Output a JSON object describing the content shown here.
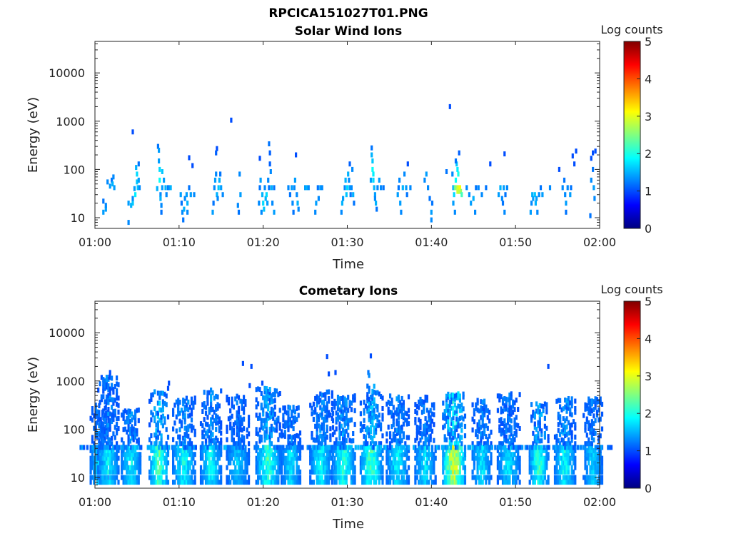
{
  "figure": {
    "filename": "RPCICA151027T01.PNG"
  },
  "chart_data": [
    {
      "type": "heatmap",
      "title": "Solar Wind Ions",
      "xlabel": "Time",
      "ylabel": "Energy (eV)",
      "yscale": "log",
      "ylim": [
        6,
        45000
      ],
      "x_range_minutes": [
        0,
        60
      ],
      "xticks": [
        "01:00",
        "01:10",
        "01:20",
        "01:30",
        "01:40",
        "01:50",
        "02:00"
      ],
      "yticks": [
        "10",
        "100",
        "1000",
        "10000"
      ],
      "colorbar": {
        "label": "Log counts",
        "range": [
          0,
          5
        ],
        "ticks": [
          "0",
          "1",
          "2",
          "3",
          "4",
          "5"
        ]
      },
      "cells": [
        [
          1.0,
          13,
          1.4
        ],
        [
          1.0,
          22,
          1.2
        ],
        [
          1.3,
          15,
          1.4
        ],
        [
          1.3,
          18,
          1.3
        ],
        [
          1.5,
          55,
          1.3
        ],
        [
          1.8,
          45,
          1.4
        ],
        [
          2.0,
          60,
          1.2
        ],
        [
          2.1,
          50,
          1.5
        ],
        [
          2.3,
          42,
          1.4
        ],
        [
          2.2,
          70,
          1.3
        ],
        [
          4.0,
          8,
          1.3
        ],
        [
          4.0,
          20,
          1.4
        ],
        [
          4.3,
          18,
          1.5
        ],
        [
          4.5,
          20,
          1.6
        ],
        [
          4.5,
          25,
          1.3
        ],
        [
          4.7,
          40,
          1.4
        ],
        [
          4.8,
          30,
          1.8
        ],
        [
          4.9,
          110,
          1.5
        ],
        [
          5.0,
          80,
          1.7
        ],
        [
          5.0,
          55,
          1.6
        ],
        [
          5.1,
          42,
          1.6
        ],
        [
          5.2,
          60,
          1.4
        ],
        [
          5.2,
          130,
          1.2
        ],
        [
          5.3,
          42,
          1.3
        ],
        [
          4.5,
          600,
          1.0
        ],
        [
          7.4,
          40,
          1.5
        ],
        [
          7.5,
          300,
          1.2
        ],
        [
          7.6,
          250,
          1.4
        ],
        [
          7.6,
          150,
          1.4
        ],
        [
          7.7,
          100,
          1.7
        ],
        [
          7.7,
          60,
          1.9
        ],
        [
          7.8,
          30,
          1.3
        ],
        [
          7.8,
          25,
          1.5
        ],
        [
          7.9,
          18,
          1.3
        ],
        [
          7.9,
          13,
          1.2
        ],
        [
          8.0,
          42,
          1.4
        ],
        [
          8.0,
          90,
          1.6
        ],
        [
          8.2,
          60,
          1.4
        ],
        [
          8.4,
          42,
          1.5
        ],
        [
          8.5,
          30,
          1.3
        ],
        [
          8.7,
          42,
          1.2
        ],
        [
          8.8,
          42,
          1.3
        ],
        [
          9.0,
          42,
          1.5
        ],
        [
          10.2,
          30,
          1.4
        ],
        [
          10.3,
          20,
          1.2
        ],
        [
          10.4,
          13,
          1.3
        ],
        [
          10.5,
          9,
          1.2
        ],
        [
          10.6,
          15,
          1.5
        ],
        [
          10.7,
          25,
          1.3
        ],
        [
          10.9,
          30,
          1.4
        ],
        [
          11.0,
          20,
          1.5
        ],
        [
          11.0,
          13,
          1.3
        ],
        [
          11.2,
          42,
          1.2
        ],
        [
          11.4,
          30,
          1.4
        ],
        [
          11.2,
          175,
          1.0
        ],
        [
          11.6,
          120,
          1.0
        ],
        [
          11.8,
          30,
          1.3
        ],
        [
          14.0,
          13,
          1.4
        ],
        [
          14.1,
          20,
          1.2
        ],
        [
          14.2,
          42,
          1.3
        ],
        [
          14.3,
          60,
          1.4
        ],
        [
          14.4,
          80,
          1.3
        ],
        [
          14.5,
          30,
          1.5
        ],
        [
          14.6,
          25,
          1.3
        ],
        [
          14.7,
          42,
          1.6
        ],
        [
          14.8,
          60,
          1.5
        ],
        [
          14.9,
          80,
          1.2
        ],
        [
          15.0,
          42,
          1.4
        ],
        [
          15.2,
          30,
          1.3
        ],
        [
          14.5,
          270,
          1.0
        ],
        [
          14.4,
          220,
          1.1
        ],
        [
          16.2,
          1050,
          1.0
        ],
        [
          17.0,
          18,
          1.3
        ],
        [
          17.1,
          13,
          1.2
        ],
        [
          17.2,
          80,
          1.3
        ],
        [
          17.3,
          30,
          1.4
        ],
        [
          19.5,
          20,
          1.3
        ],
        [
          19.6,
          42,
          1.2
        ],
        [
          19.7,
          60,
          1.4
        ],
        [
          19.8,
          13,
          1.3
        ],
        [
          19.9,
          30,
          1.5
        ],
        [
          20.0,
          20,
          1.7
        ],
        [
          20.1,
          15,
          1.6
        ],
        [
          20.2,
          42,
          1.3
        ],
        [
          20.3,
          25,
          1.5
        ],
        [
          20.4,
          30,
          1.7
        ],
        [
          20.5,
          20,
          1.4
        ],
        [
          20.6,
          60,
          1.3
        ],
        [
          20.7,
          42,
          1.2
        ],
        [
          20.8,
          130,
          1.1
        ],
        [
          20.7,
          340,
          1.2
        ],
        [
          20.8,
          220,
          1.1
        ],
        [
          20.9,
          90,
          1.3
        ],
        [
          21.0,
          42,
          1.5
        ],
        [
          21.1,
          20,
          1.3
        ],
        [
          21.3,
          13,
          1.4
        ],
        [
          21.3,
          42,
          1.2
        ],
        [
          19.6,
          170,
          1.0
        ],
        [
          23.0,
          42,
          1.3
        ],
        [
          23.2,
          30,
          1.2
        ],
        [
          23.4,
          42,
          1.4
        ],
        [
          23.5,
          20,
          1.3
        ],
        [
          23.6,
          13,
          1.2
        ],
        [
          23.7,
          42,
          1.3
        ],
        [
          23.8,
          60,
          1.4
        ],
        [
          24.0,
          30,
          1.3
        ],
        [
          24.1,
          20,
          1.5
        ],
        [
          24.2,
          15,
          1.3
        ],
        [
          23.9,
          200,
          1.0
        ],
        [
          25.0,
          42,
          1.4
        ],
        [
          25.2,
          42,
          1.5
        ],
        [
          25.4,
          42,
          1.3
        ],
        [
          26.2,
          13,
          1.3
        ],
        [
          26.3,
          20,
          1.4
        ],
        [
          26.5,
          42,
          1.2
        ],
        [
          26.6,
          25,
          1.3
        ],
        [
          26.8,
          42,
          1.4
        ],
        [
          27.0,
          42,
          1.3
        ],
        [
          29.3,
          13,
          1.3
        ],
        [
          29.4,
          20,
          1.5
        ],
        [
          29.5,
          25,
          1.4
        ],
        [
          29.7,
          42,
          1.3
        ],
        [
          29.8,
          60,
          1.5
        ],
        [
          29.9,
          30,
          1.6
        ],
        [
          30.0,
          42,
          1.7
        ],
        [
          30.1,
          80,
          1.5
        ],
        [
          30.2,
          60,
          1.3
        ],
        [
          30.3,
          42,
          1.4
        ],
        [
          30.4,
          30,
          1.2
        ],
        [
          30.5,
          42,
          1.3
        ],
        [
          30.6,
          100,
          1.3
        ],
        [
          30.7,
          30,
          1.5
        ],
        [
          30.8,
          20,
          1.2
        ],
        [
          30.3,
          130,
          1.1
        ],
        [
          32.8,
          60,
          1.4
        ],
        [
          32.9,
          280,
          1.2
        ],
        [
          33.0,
          150,
          1.6
        ],
        [
          33.0,
          100,
          1.9
        ],
        [
          33.1,
          80,
          1.8
        ],
        [
          33.1,
          60,
          1.7
        ],
        [
          33.2,
          42,
          1.5
        ],
        [
          33.3,
          30,
          1.4
        ],
        [
          33.3,
          25,
          1.3
        ],
        [
          33.4,
          20,
          1.5
        ],
        [
          33.5,
          15,
          1.2
        ],
        [
          33.6,
          42,
          1.3
        ],
        [
          33.8,
          60,
          1.4
        ],
        [
          34.0,
          42,
          1.3
        ],
        [
          34.3,
          42,
          1.2
        ],
        [
          32.9,
          200,
          1.5
        ],
        [
          36.0,
          30,
          1.4
        ],
        [
          36.1,
          42,
          1.2
        ],
        [
          36.2,
          60,
          1.3
        ],
        [
          36.3,
          20,
          1.4
        ],
        [
          36.4,
          13,
          1.3
        ],
        [
          36.6,
          42,
          1.5
        ],
        [
          36.8,
          80,
          1.3
        ],
        [
          37.0,
          42,
          1.4
        ],
        [
          37.1,
          30,
          1.2
        ],
        [
          37.2,
          130,
          1.0
        ],
        [
          37.5,
          42,
          1.3
        ],
        [
          39.2,
          60,
          1.3
        ],
        [
          39.4,
          80,
          1.4
        ],
        [
          39.6,
          42,
          1.3
        ],
        [
          39.8,
          25,
          1.2
        ],
        [
          40.0,
          13,
          1.4
        ],
        [
          40.0,
          9,
          1.3
        ],
        [
          40.1,
          20,
          1.2
        ],
        [
          42.2,
          2000,
          1.0
        ],
        [
          41.8,
          90,
          1.2
        ],
        [
          42.5,
          80,
          1.3
        ],
        [
          42.6,
          42,
          1.5
        ],
        [
          42.7,
          30,
          1.7
        ],
        [
          42.8,
          42,
          2.4
        ],
        [
          42.9,
          60,
          1.9
        ],
        [
          43.0,
          42,
          2.7
        ],
        [
          43.1,
          35,
          2.9
        ],
        [
          43.2,
          42,
          3.0
        ],
        [
          43.3,
          35,
          2.8
        ],
        [
          43.4,
          42,
          3.1
        ],
        [
          43.5,
          35,
          2.6
        ],
        [
          43.6,
          30,
          2.2
        ],
        [
          43.2,
          80,
          2.0
        ],
        [
          43.1,
          100,
          1.8
        ],
        [
          43.0,
          130,
          1.6
        ],
        [
          42.6,
          20,
          1.4
        ],
        [
          42.8,
          13,
          1.3
        ],
        [
          42.9,
          150,
          1.2
        ],
        [
          43.3,
          220,
          1.1
        ],
        [
          44.2,
          42,
          1.3
        ],
        [
          44.5,
          30,
          1.3
        ],
        [
          44.7,
          20,
          1.4
        ],
        [
          45.0,
          25,
          1.5
        ],
        [
          45.2,
          13,
          1.3
        ],
        [
          45.3,
          42,
          1.2
        ],
        [
          45.6,
          42,
          1.3
        ],
        [
          46.0,
          30,
          1.3
        ],
        [
          46.5,
          42,
          1.2
        ],
        [
          47.0,
          130,
          1.0
        ],
        [
          48.0,
          30,
          1.4
        ],
        [
          48.2,
          42,
          1.5
        ],
        [
          48.4,
          25,
          1.3
        ],
        [
          48.5,
          20,
          1.2
        ],
        [
          48.6,
          42,
          1.4
        ],
        [
          48.7,
          13,
          1.3
        ],
        [
          48.8,
          30,
          1.2
        ],
        [
          49.0,
          42,
          1.3
        ],
        [
          48.7,
          210,
          1.0
        ],
        [
          51.8,
          13,
          1.4
        ],
        [
          51.9,
          20,
          1.3
        ],
        [
          52.0,
          30,
          1.5
        ],
        [
          52.1,
          25,
          1.4
        ],
        [
          52.3,
          30,
          1.6
        ],
        [
          52.4,
          20,
          1.5
        ],
        [
          52.5,
          25,
          1.4
        ],
        [
          52.6,
          13,
          1.3
        ],
        [
          52.8,
          30,
          1.3
        ],
        [
          53.0,
          42,
          1.2
        ],
        [
          53.2,
          30,
          1.4
        ],
        [
          54.1,
          42,
          1.3
        ],
        [
          55.6,
          42,
          1.3
        ],
        [
          55.8,
          60,
          1.2
        ],
        [
          55.9,
          30,
          1.3
        ],
        [
          56.0,
          20,
          1.4
        ],
        [
          56.0,
          13,
          1.2
        ],
        [
          56.2,
          42,
          1.3
        ],
        [
          56.5,
          30,
          1.4
        ],
        [
          56.6,
          42,
          1.2
        ],
        [
          55.2,
          100,
          1.0
        ],
        [
          57.0,
          130,
          1.0
        ],
        [
          57.2,
          240,
          1.0
        ],
        [
          56.8,
          190,
          1.0
        ],
        [
          59.0,
          60,
          1.3
        ],
        [
          59.2,
          100,
          1.2
        ],
        [
          59.3,
          42,
          1.4
        ],
        [
          59.4,
          25,
          1.3
        ],
        [
          59.2,
          220,
          1.0
        ],
        [
          59.5,
          240,
          1.0
        ],
        [
          58.9,
          11,
          1.2
        ],
        [
          59.0,
          170,
          1.0
        ]
      ]
    },
    {
      "type": "heatmap",
      "title": "Cometary Ions",
      "xlabel": "Time",
      "ylabel": "Energy (eV)",
      "yscale": "log",
      "ylim": [
        6,
        45000
      ],
      "x_range_minutes": [
        0,
        60
      ],
      "xticks": [
        "01:00",
        "01:10",
        "01:20",
        "01:30",
        "01:40",
        "01:50",
        "02:00"
      ],
      "yticks": [
        "10",
        "100",
        "1000",
        "10000"
      ],
      "colorbar": {
        "label": "Log counts",
        "range": [
          0,
          5
        ],
        "ticks": [
          "0",
          "1",
          "2",
          "3",
          "4",
          "5"
        ]
      },
      "cells": [],
      "bursts": [
        [
          0.5,
          350,
          1.9,
          1.0
        ],
        [
          1.6,
          1200,
          2.1,
          1.2
        ],
        [
          4.3,
          250,
          2.1,
          1.1
        ],
        [
          7.6,
          600,
          2.7,
          1.1
        ],
        [
          10.6,
          450,
          2.2,
          1.3
        ],
        [
          13.8,
          650,
          2.2,
          1.2
        ],
        [
          17.0,
          500,
          1.8,
          1.3
        ],
        [
          20.6,
          700,
          2.5,
          1.4
        ],
        [
          23.3,
          300,
          2.0,
          1.1
        ],
        [
          26.9,
          600,
          2.1,
          1.3
        ],
        [
          29.6,
          500,
          2.4,
          1.3
        ],
        [
          32.9,
          800,
          2.6,
          1.3
        ],
        [
          36.0,
          500,
          2.1,
          1.3
        ],
        [
          39.3,
          500,
          2.0,
          1.2
        ],
        [
          42.7,
          550,
          3.6,
          1.3
        ],
        [
          46.0,
          400,
          2.0,
          1.1
        ],
        [
          49.2,
          550,
          2.0,
          1.3
        ],
        [
          52.8,
          350,
          2.5,
          1.1
        ],
        [
          55.9,
          450,
          2.2,
          1.2
        ],
        [
          59.2,
          450,
          1.9,
          1.1
        ]
      ],
      "sparse_points": [
        [
          1.8,
          1500,
          1.0
        ],
        [
          1.7,
          1200,
          1.0
        ],
        [
          8.8,
          900,
          1.0
        ],
        [
          8.7,
          700,
          1.0
        ],
        [
          17.6,
          2300,
          1.0
        ],
        [
          18.6,
          2000,
          1.0
        ],
        [
          27.6,
          3200,
          1.0
        ],
        [
          28.6,
          1500,
          1.0
        ],
        [
          27.8,
          1400,
          1.0
        ],
        [
          32.5,
          1500,
          1.2
        ],
        [
          32.6,
          1300,
          1.3
        ],
        [
          32.8,
          3300,
          1.0
        ],
        [
          53.9,
          2000,
          1.0
        ],
        [
          18.4,
          800,
          1.0
        ],
        [
          19.9,
          900,
          1.0
        ]
      ]
    }
  ]
}
